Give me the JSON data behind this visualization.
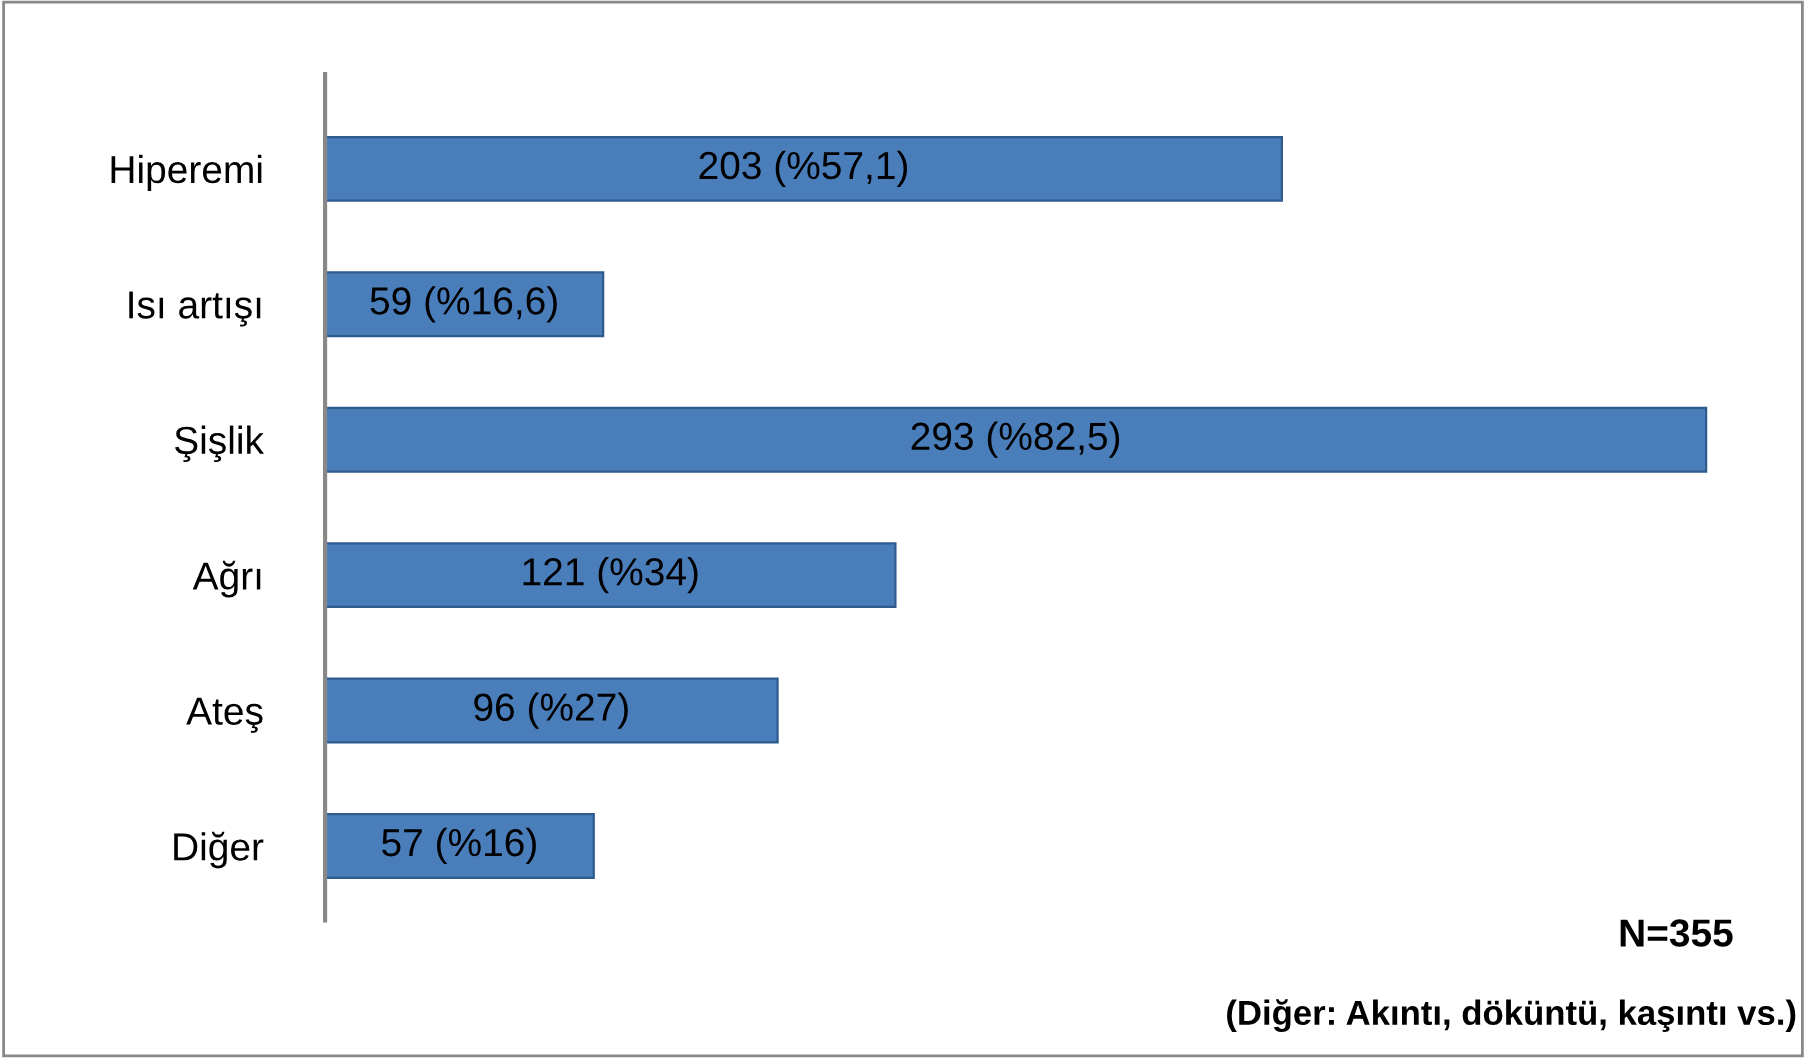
{
  "chart_data": {
    "type": "bar",
    "orientation": "horizontal",
    "categories": [
      "Hiperemi",
      "Isı artışı",
      "Şişlik",
      "Ağrı",
      "Ateş",
      "Diğer"
    ],
    "values": [
      203,
      59,
      293,
      121,
      96,
      57
    ],
    "value_labels": [
      "203 (%57,1)",
      "59 (%16,6)",
      "293 (%82,5)",
      "121 (%34)",
      "96 (%27)",
      "57 (%16)"
    ],
    "color": "#4a7ebb",
    "grid": false,
    "legend": false,
    "annotations": [
      "N=355",
      "(Diğer: Akıntı, döküntü, kaşıntı vs.)"
    ]
  }
}
